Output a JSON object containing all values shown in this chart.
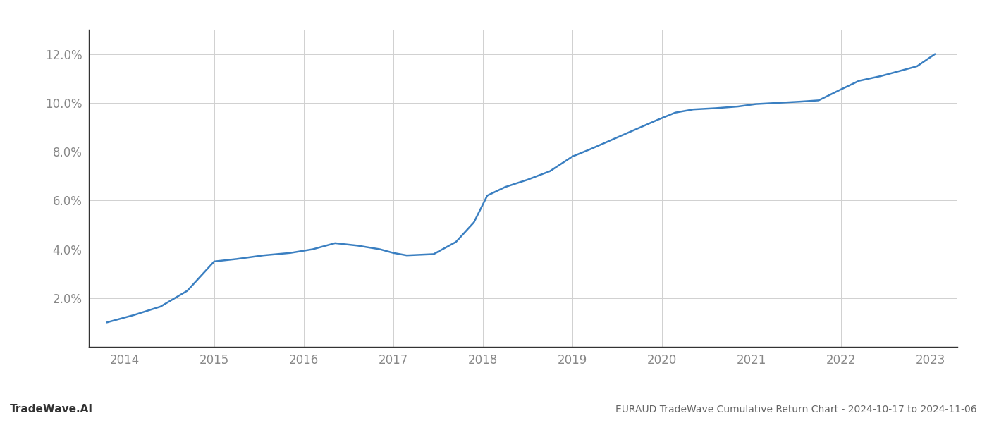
{
  "x": [
    2013.8,
    2014.1,
    2014.4,
    2014.7,
    2015.0,
    2015.25,
    2015.55,
    2015.85,
    2016.1,
    2016.35,
    2016.6,
    2016.85,
    2017.0,
    2017.15,
    2017.45,
    2017.7,
    2017.9,
    2018.05,
    2018.25,
    2018.5,
    2018.75,
    2019.0,
    2019.2,
    2019.45,
    2019.7,
    2019.95,
    2020.15,
    2020.35,
    2020.6,
    2020.85,
    2021.05,
    2021.3,
    2021.55,
    2021.75,
    2022.0,
    2022.2,
    2022.45,
    2022.65,
    2022.85,
    2023.05
  ],
  "y": [
    1.0,
    1.3,
    1.65,
    2.3,
    3.5,
    3.6,
    3.75,
    3.85,
    4.0,
    4.25,
    4.15,
    4.0,
    3.85,
    3.75,
    3.8,
    4.3,
    5.1,
    6.2,
    6.55,
    6.85,
    7.2,
    7.8,
    8.1,
    8.5,
    8.9,
    9.3,
    9.6,
    9.73,
    9.78,
    9.85,
    9.95,
    10.0,
    10.05,
    10.1,
    10.55,
    10.9,
    11.1,
    11.3,
    11.5,
    12.0
  ],
  "line_color": "#3a7fc1",
  "line_width": 1.8,
  "title": "EURAUD TradeWave Cumulative Return Chart - 2024-10-17 to 2024-11-06",
  "watermark": "TradeWave.AI",
  "xlim": [
    2013.6,
    2023.3
  ],
  "ylim": [
    0.0,
    13.0
  ],
  "yticks": [
    2.0,
    4.0,
    6.0,
    8.0,
    10.0,
    12.0
  ],
  "xticks": [
    2014,
    2015,
    2016,
    2017,
    2018,
    2019,
    2020,
    2021,
    2022,
    2023
  ],
  "bg_color": "#ffffff",
  "grid_color": "#d0d0d0",
  "tick_label_color": "#888888",
  "title_color": "#666666",
  "watermark_color": "#333333",
  "spine_color": "#333333"
}
